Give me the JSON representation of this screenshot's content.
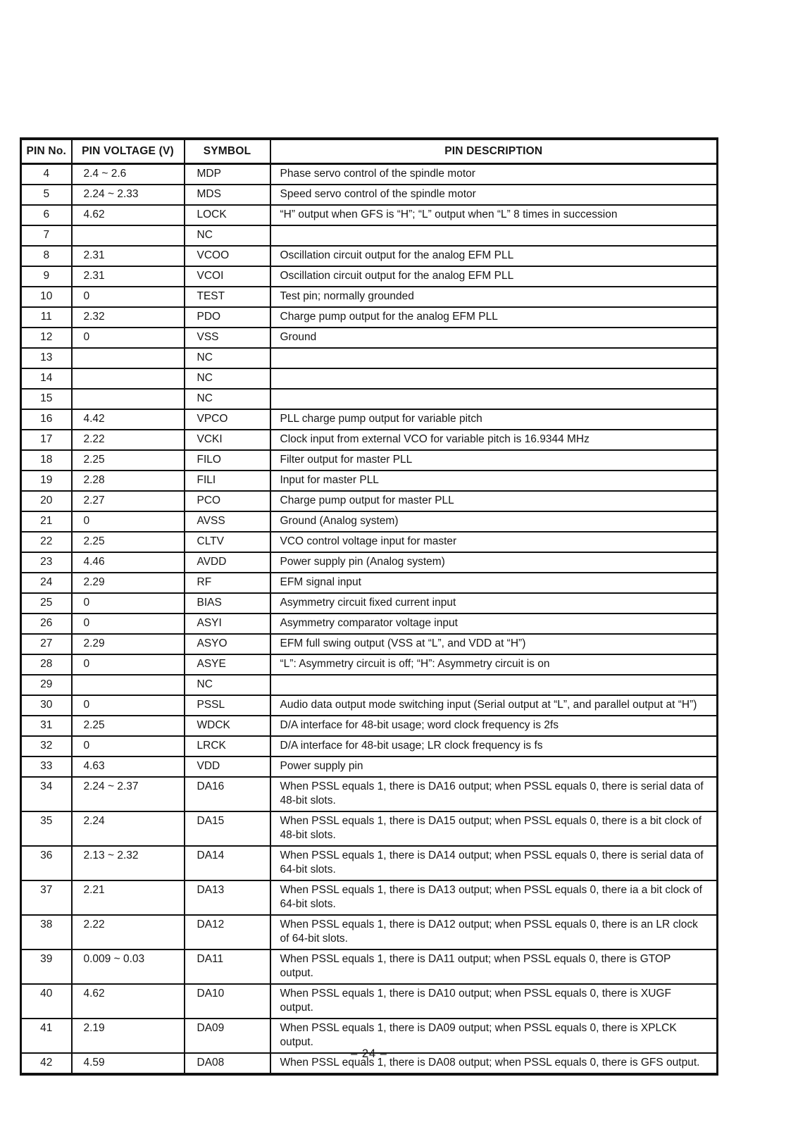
{
  "page": {
    "number_label": "– 24 –"
  },
  "table": {
    "headers": [
      "PIN No.",
      "PIN VOLTAGE (V)",
      "SYMBOL",
      "PIN DESCRIPTION"
    ],
    "rows": [
      {
        "pin": "4",
        "voltage": "2.4 ~ 2.6",
        "symbol": "MDP",
        "description": "Phase servo control of the spindle motor"
      },
      {
        "pin": "5",
        "voltage": "2.24 ~ 2.33",
        "symbol": "MDS",
        "description": "Speed servo control of the spindle motor"
      },
      {
        "pin": "6",
        "voltage": "4.62",
        "symbol": "LOCK",
        "description": "“H” output when GFS is “H”; “L” output when “L” 8 times in succession"
      },
      {
        "pin": "7",
        "voltage": "",
        "symbol": "NC",
        "description": ""
      },
      {
        "pin": "8",
        "voltage": "2.31",
        "symbol": "VCOO",
        "description": "Oscillation circuit output for the analog EFM PLL"
      },
      {
        "pin": "9",
        "voltage": "2.31",
        "symbol": "VCOI",
        "description": "Oscillation circuit output for the analog EFM PLL"
      },
      {
        "pin": "10",
        "voltage": "0",
        "symbol": "TEST",
        "description": "Test pin; normally grounded"
      },
      {
        "pin": "11",
        "voltage": "2.32",
        "symbol": "PDO",
        "description": "Charge pump output for the analog EFM PLL"
      },
      {
        "pin": "12",
        "voltage": "0",
        "symbol": "VSS",
        "description": "Ground"
      },
      {
        "pin": "13",
        "voltage": "",
        "symbol": "NC",
        "description": ""
      },
      {
        "pin": "14",
        "voltage": "",
        "symbol": "NC",
        "description": ""
      },
      {
        "pin": "15",
        "voltage": "",
        "symbol": "NC",
        "description": ""
      },
      {
        "pin": "16",
        "voltage": "4.42",
        "symbol": "VPCO",
        "description": "PLL charge pump output for variable pitch"
      },
      {
        "pin": "17",
        "voltage": "2.22",
        "symbol": "VCKI",
        "description": "Clock input from external VCO for variable pitch is 16.9344 MHz"
      },
      {
        "pin": "18",
        "voltage": "2.25",
        "symbol": "FILO",
        "description": "Filter output for master PLL"
      },
      {
        "pin": "19",
        "voltage": "2.28",
        "symbol": "FILI",
        "description": "Input for master PLL"
      },
      {
        "pin": "20",
        "voltage": "2.27",
        "symbol": "PCO",
        "description": "Charge pump output for master PLL"
      },
      {
        "pin": "21",
        "voltage": "0",
        "symbol": "AVSS",
        "description": "Ground (Analog system)"
      },
      {
        "pin": "22",
        "voltage": "2.25",
        "symbol": "CLTV",
        "description": "VCO control voltage input for master"
      },
      {
        "pin": "23",
        "voltage": "4.46",
        "symbol": "AVDD",
        "description": "Power supply pin (Analog system)"
      },
      {
        "pin": "24",
        "voltage": "2.29",
        "symbol": "RF",
        "description": "EFM signal input"
      },
      {
        "pin": "25",
        "voltage": "0",
        "symbol": "BIAS",
        "description": "Asymmetry circuit fixed current input"
      },
      {
        "pin": "26",
        "voltage": "0",
        "symbol": "ASYI",
        "description": "Asymmetry comparator voltage input"
      },
      {
        "pin": "27",
        "voltage": "2.29",
        "symbol": "ASYO",
        "description": "EFM full swing output (VSS at “L”, and VDD at “H”)"
      },
      {
        "pin": "28",
        "voltage": "0",
        "symbol": "ASYE",
        "description": "“L”: Asymmetry circuit is off; “H”: Asymmetry circuit is on"
      },
      {
        "pin": "29",
        "voltage": "",
        "symbol": "NC",
        "description": ""
      },
      {
        "pin": "30",
        "voltage": "0",
        "symbol": "PSSL",
        "description": "Audio data output mode switching input (Serial output at “L”, and parallel output at “H”)"
      },
      {
        "pin": "31",
        "voltage": "2.25",
        "symbol": "WDCK",
        "description": "D/A interface for 48-bit usage; word clock frequency is 2fs"
      },
      {
        "pin": "32",
        "voltage": "0",
        "symbol": "LRCK",
        "description": "D/A interface for 48-bit usage; LR clock frequency is fs"
      },
      {
        "pin": "33",
        "voltage": "4.63",
        "symbol": "VDD",
        "description": "Power supply pin"
      },
      {
        "pin": "34",
        "voltage": "2.24 ~ 2.37",
        "symbol": "DA16",
        "description": "When PSSL equals 1, there is DA16 output; when PSSL equals 0, there is serial data of 48-bit slots."
      },
      {
        "pin": "35",
        "voltage": "2.24",
        "symbol": "DA15",
        "description": "When PSSL equals 1, there is DA15 output; when PSSL equals 0, there is a bit clock of 48-bit slots."
      },
      {
        "pin": "36",
        "voltage": "2.13 ~ 2.32",
        "symbol": "DA14",
        "description": "When PSSL equals 1, there is DA14 output; when PSSL equals 0, there is serial data of 64-bit slots."
      },
      {
        "pin": "37",
        "voltage": "2.21",
        "symbol": "DA13",
        "description": "When PSSL equals 1, there is DA13 output; when PSSL equals 0, there ia a bit clock of 64-bit slots."
      },
      {
        "pin": "38",
        "voltage": "2.22",
        "symbol": "DA12",
        "description": "When PSSL equals 1, there is DA12 output; when PSSL equals 0, there is an LR clock of 64-bit slots."
      },
      {
        "pin": "39",
        "voltage": "0.009 ~ 0.03",
        "symbol": "DA11",
        "description": "When PSSL equals 1, there is DA11 output; when PSSL equals 0, there is GTOP output."
      },
      {
        "pin": "40",
        "voltage": "4.62",
        "symbol": "DA10",
        "description": "When PSSL equals 1, there is DA10 output; when PSSL equals 0, there is XUGF output."
      },
      {
        "pin": "41",
        "voltage": "2.19",
        "symbol": "DA09",
        "description": "When PSSL equals 1, there is DA09 output; when PSSL equals 0, there is XPLCK output."
      },
      {
        "pin": "42",
        "voltage": "4.59",
        "symbol": "DA08",
        "description": "When PSSL equals 1, there is DA08 output; when PSSL equals 0, there is GFS output."
      }
    ]
  }
}
